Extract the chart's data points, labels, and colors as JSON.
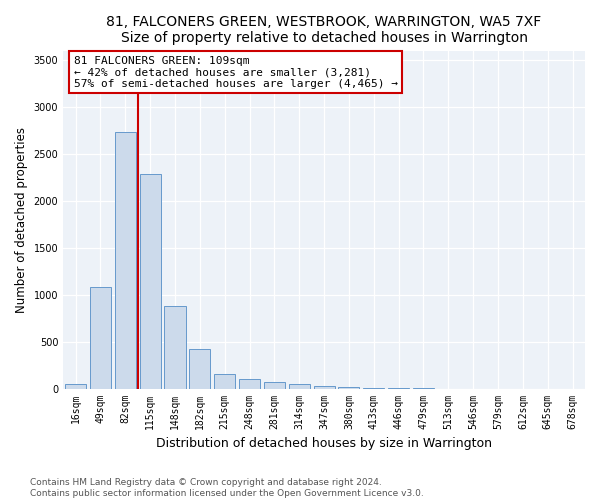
{
  "title": "81, FALCONERS GREEN, WESTBROOK, WARRINGTON, WA5 7XF",
  "subtitle": "Size of property relative to detached houses in Warrington",
  "xlabel": "Distribution of detached houses by size in Warrington",
  "ylabel": "Number of detached properties",
  "footer_line1": "Contains HM Land Registry data © Crown copyright and database right 2024.",
  "footer_line2": "Contains public sector information licensed under the Open Government Licence v3.0.",
  "annotation_line1": "81 FALCONERS GREEN: 109sqm",
  "annotation_line2": "← 42% of detached houses are smaller (3,281)",
  "annotation_line3": "57% of semi-detached houses are larger (4,465) →",
  "bar_color": "#ccdaeb",
  "bar_edge_color": "#6699cc",
  "redline_color": "#cc0000",
  "annotation_box_edgecolor": "#cc0000",
  "background_color": "#edf2f8",
  "grid_color": "#ffffff",
  "categories": [
    "16sqm",
    "49sqm",
    "82sqm",
    "115sqm",
    "148sqm",
    "182sqm",
    "215sqm",
    "248sqm",
    "281sqm",
    "314sqm",
    "347sqm",
    "380sqm",
    "413sqm",
    "446sqm",
    "479sqm",
    "513sqm",
    "546sqm",
    "579sqm",
    "612sqm",
    "645sqm",
    "678sqm"
  ],
  "values": [
    50,
    1080,
    2730,
    2290,
    880,
    420,
    155,
    100,
    65,
    48,
    28,
    18,
    8,
    4,
    2,
    0,
    0,
    0,
    0,
    0,
    0
  ],
  "ylim": [
    0,
    3600
  ],
  "yticks": [
    0,
    500,
    1000,
    1500,
    2000,
    2500,
    3000,
    3500
  ],
  "redline_x": 2.5,
  "title_fontsize": 10,
  "ylabel_fontsize": 8.5,
  "xlabel_fontsize": 9,
  "tick_fontsize": 7,
  "annotation_fontsize": 8,
  "footer_fontsize": 6.5
}
